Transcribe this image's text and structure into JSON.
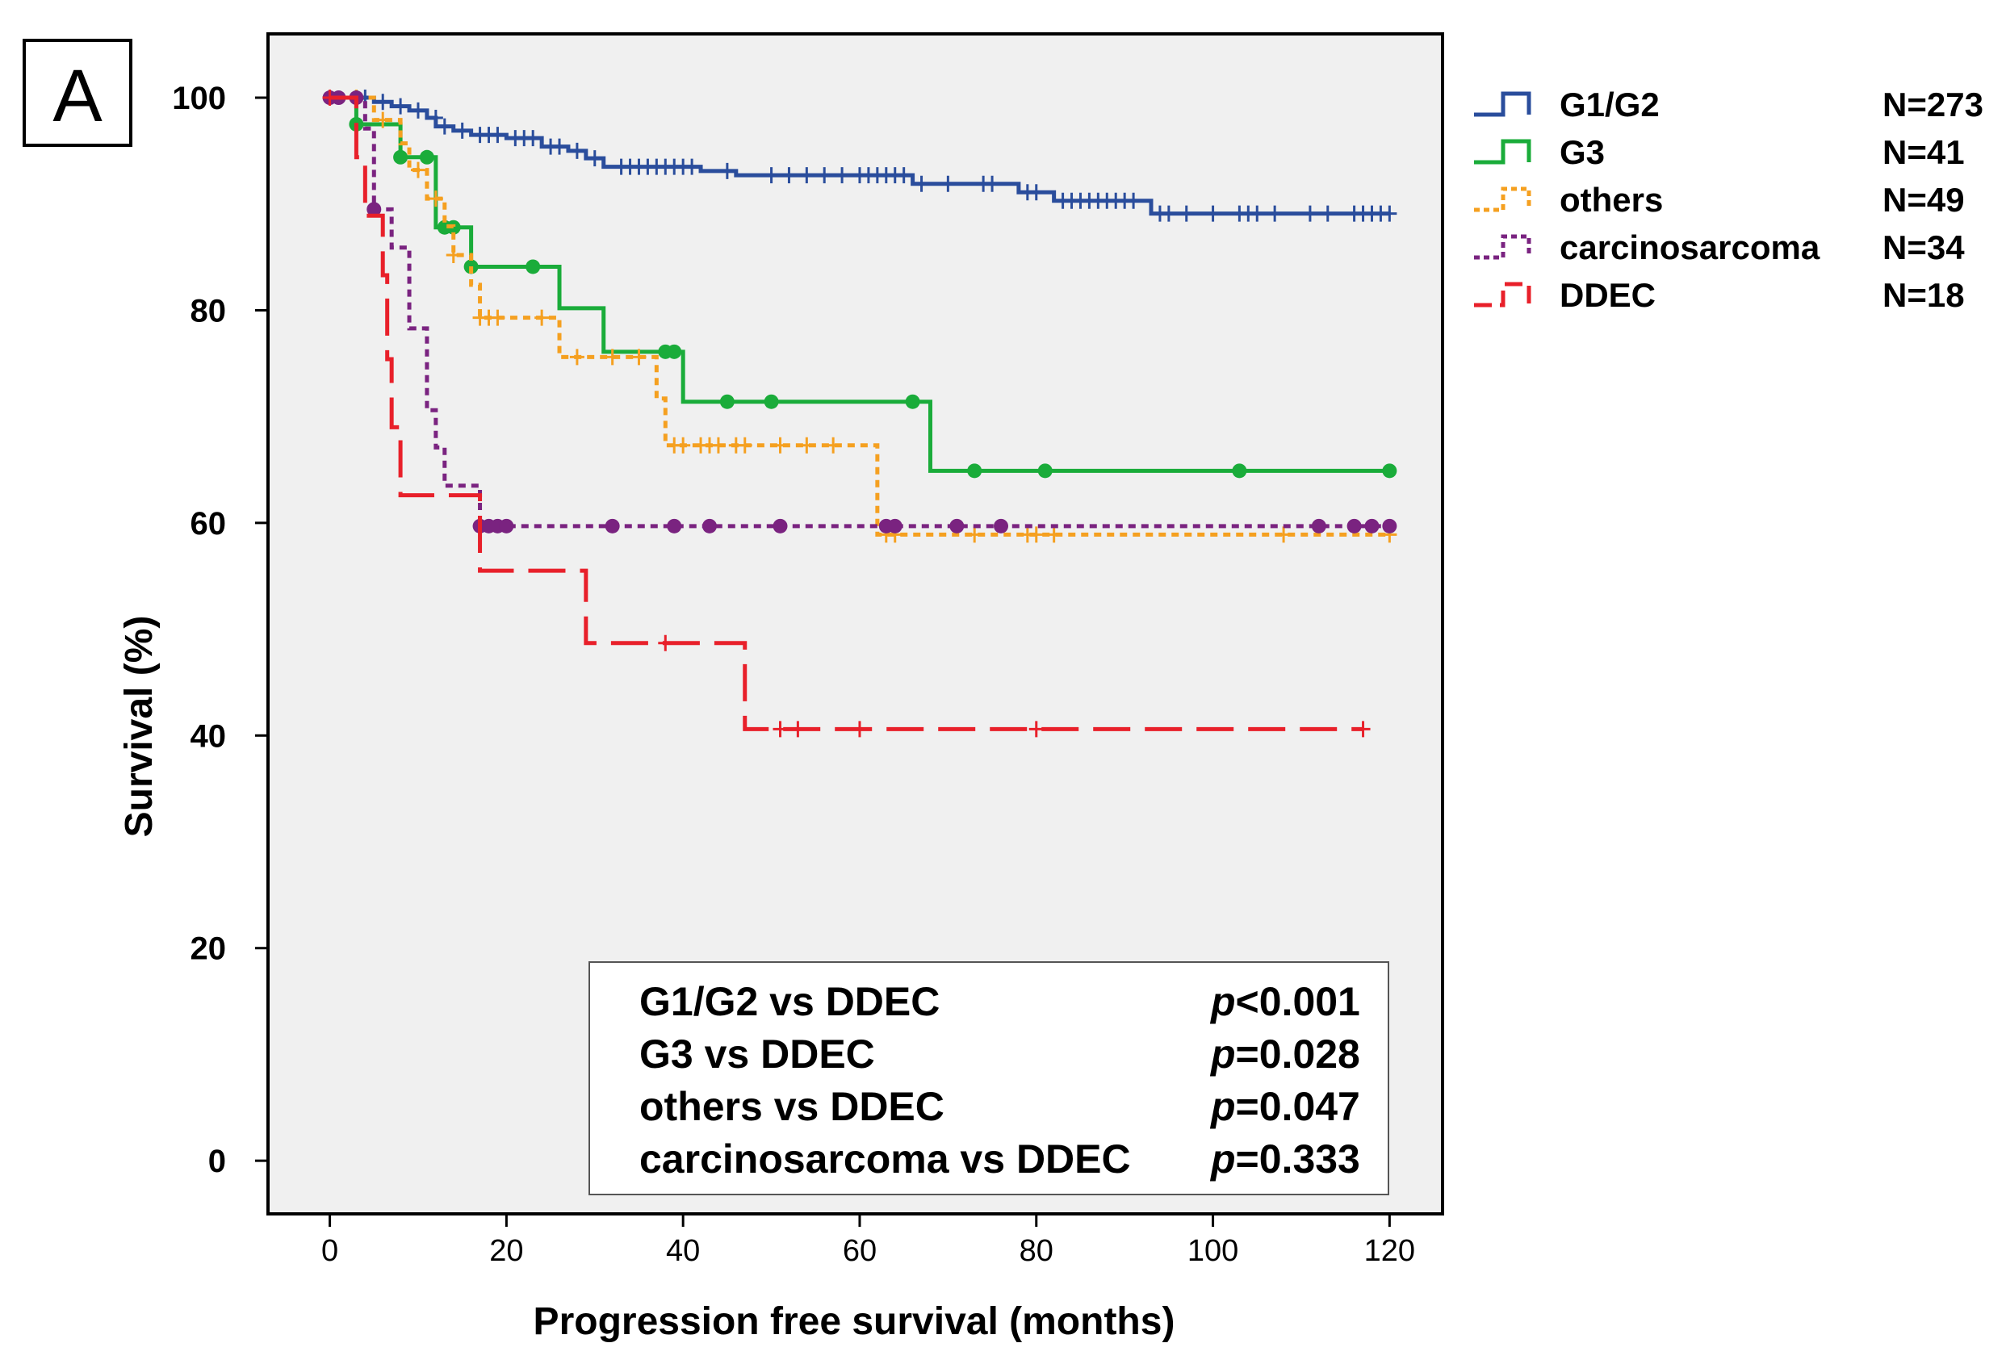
{
  "panel_label": "A",
  "chart_data": {
    "type": "line",
    "subtype": "kaplan-meier",
    "title": "",
    "xlabel": "Progression free survival (months)",
    "ylabel": "Survival (%)",
    "xlim": [
      -7,
      126
    ],
    "ylim": [
      -5,
      106
    ],
    "xticks": [
      0,
      20,
      40,
      60,
      80,
      100,
      120
    ],
    "yticks": [
      0,
      20,
      40,
      60,
      80,
      100
    ],
    "grid": false,
    "background": "#f0f0f0",
    "legend_position": "right",
    "series": [
      {
        "name": "G1/G2",
        "n_label": "N=273",
        "color": "#2a4d9c",
        "dash": "solid",
        "censor": "plus",
        "steps": [
          [
            0,
            100
          ],
          [
            5,
            99.6
          ],
          [
            7,
            99.2
          ],
          [
            9,
            98.8
          ],
          [
            11,
            98.1
          ],
          [
            12,
            97.3
          ],
          [
            14,
            96.9
          ],
          [
            16,
            96.5
          ],
          [
            20,
            96.2
          ],
          [
            24,
            95.4
          ],
          [
            27,
            95.0
          ],
          [
            29,
            94.3
          ],
          [
            31,
            93.5
          ],
          [
            42,
            93.1
          ],
          [
            46,
            92.7
          ],
          [
            66,
            91.9
          ],
          [
            78,
            91.1
          ],
          [
            82,
            90.3
          ],
          [
            93,
            89.1
          ],
          [
            120,
            89.1
          ]
        ],
        "censored": [
          [
            3,
            100
          ],
          [
            4,
            100
          ],
          [
            6,
            99.6
          ],
          [
            8,
            99.2
          ],
          [
            10,
            98.8
          ],
          [
            12,
            98.1
          ],
          [
            13,
            97.3
          ],
          [
            15,
            96.9
          ],
          [
            17,
            96.5
          ],
          [
            18,
            96.5
          ],
          [
            19,
            96.5
          ],
          [
            21,
            96.2
          ],
          [
            22,
            96.2
          ],
          [
            23,
            96.2
          ],
          [
            25,
            95.4
          ],
          [
            26,
            95.4
          ],
          [
            28,
            95.0
          ],
          [
            30,
            94.3
          ],
          [
            33,
            93.5
          ],
          [
            34,
            93.5
          ],
          [
            35,
            93.5
          ],
          [
            36,
            93.5
          ],
          [
            37,
            93.5
          ],
          [
            38,
            93.5
          ],
          [
            39,
            93.5
          ],
          [
            40,
            93.5
          ],
          [
            41,
            93.5
          ],
          [
            45,
            93.1
          ],
          [
            50,
            92.7
          ],
          [
            52,
            92.7
          ],
          [
            54,
            92.7
          ],
          [
            56,
            92.7
          ],
          [
            58,
            92.7
          ],
          [
            60,
            92.7
          ],
          [
            61,
            92.7
          ],
          [
            62,
            92.7
          ],
          [
            63,
            92.7
          ],
          [
            64,
            92.7
          ],
          [
            65,
            92.7
          ],
          [
            67,
            91.9
          ],
          [
            70,
            91.9
          ],
          [
            74,
            91.9
          ],
          [
            75,
            91.9
          ],
          [
            79,
            91.1
          ],
          [
            80,
            91.1
          ],
          [
            83,
            90.3
          ],
          [
            84,
            90.3
          ],
          [
            85,
            90.3
          ],
          [
            86,
            90.3
          ],
          [
            87,
            90.3
          ],
          [
            88,
            90.3
          ],
          [
            89,
            90.3
          ],
          [
            90,
            90.3
          ],
          [
            91,
            90.3
          ],
          [
            94,
            89.1
          ],
          [
            95,
            89.1
          ],
          [
            97,
            89.1
          ],
          [
            100,
            89.1
          ],
          [
            103,
            89.1
          ],
          [
            104,
            89.1
          ],
          [
            105,
            89.1
          ],
          [
            107,
            89.1
          ],
          [
            111,
            89.1
          ],
          [
            113,
            89.1
          ],
          [
            116,
            89.1
          ],
          [
            117,
            89.1
          ],
          [
            118,
            89.1
          ],
          [
            119,
            89.1
          ],
          [
            120,
            89.1
          ]
        ]
      },
      {
        "name": "G3",
        "n_label": "N=41",
        "color": "#1aac3a",
        "dash": "solid",
        "censor": "dot",
        "steps": [
          [
            0,
            100
          ],
          [
            3,
            97.5
          ],
          [
            8,
            94.4
          ],
          [
            11,
            94.4
          ],
          [
            12,
            87.8
          ],
          [
            16,
            84.1
          ],
          [
            26,
            80.2
          ],
          [
            31,
            76.1
          ],
          [
            40,
            71.4
          ],
          [
            68,
            64.9
          ],
          [
            120,
            64.9
          ]
        ],
        "censored": [
          [
            3,
            97.5
          ],
          [
            8,
            94.4
          ],
          [
            11,
            94.4
          ],
          [
            13,
            87.8
          ],
          [
            14,
            87.8
          ],
          [
            16,
            84.1
          ],
          [
            23,
            84.1
          ],
          [
            38,
            76.1
          ],
          [
            39,
            76.1
          ],
          [
            45,
            71.4
          ],
          [
            50,
            71.4
          ],
          [
            66,
            71.4
          ],
          [
            73,
            64.9
          ],
          [
            81,
            64.9
          ],
          [
            103,
            64.9
          ],
          [
            120,
            64.9
          ]
        ]
      },
      {
        "name": "others",
        "n_label": "N=49",
        "color": "#f5a020",
        "dash": "dot",
        "censor": "plus",
        "steps": [
          [
            0,
            100
          ],
          [
            5,
            97.9
          ],
          [
            8,
            95.7
          ],
          [
            9,
            93.2
          ],
          [
            11,
            90.5
          ],
          [
            13,
            87.9
          ],
          [
            14,
            85.2
          ],
          [
            16,
            82.4
          ],
          [
            17,
            79.3
          ],
          [
            26,
            75.6
          ],
          [
            37,
            71.7
          ],
          [
            38,
            67.3
          ],
          [
            62,
            58.9
          ],
          [
            120,
            58.9
          ]
        ],
        "censored": [
          [
            3,
            100
          ],
          [
            6,
            97.9
          ],
          [
            10,
            93.2
          ],
          [
            12,
            90.5
          ],
          [
            14,
            85.2
          ],
          [
            17,
            79.3
          ],
          [
            18,
            79.3
          ],
          [
            19,
            79.3
          ],
          [
            24,
            79.3
          ],
          [
            28,
            75.6
          ],
          [
            32,
            75.6
          ],
          [
            35,
            75.6
          ],
          [
            39,
            67.3
          ],
          [
            40,
            67.3
          ],
          [
            42,
            67.3
          ],
          [
            43,
            67.3
          ],
          [
            44,
            67.3
          ],
          [
            46,
            67.3
          ],
          [
            47,
            67.3
          ],
          [
            51,
            67.3
          ],
          [
            54,
            67.3
          ],
          [
            57,
            67.3
          ],
          [
            63,
            58.9
          ],
          [
            64,
            58.9
          ],
          [
            73,
            58.9
          ],
          [
            79,
            58.9
          ],
          [
            80,
            58.9
          ],
          [
            82,
            58.9
          ],
          [
            108,
            58.9
          ],
          [
            120,
            58.9
          ]
        ]
      },
      {
        "name": "carcinosarcoma",
        "n_label": "N=34",
        "color": "#7a2380",
        "dash": "dot",
        "censor": "dot",
        "steps": [
          [
            0,
            100
          ],
          [
            4,
            97.1
          ],
          [
            5,
            89.5
          ],
          [
            7,
            85.9
          ],
          [
            9,
            78.3
          ],
          [
            11,
            70.6
          ],
          [
            12,
            67.1
          ],
          [
            13,
            63.5
          ],
          [
            17,
            59.7
          ],
          [
            120,
            59.7
          ]
        ],
        "censored": [
          [
            0,
            100
          ],
          [
            1,
            100
          ],
          [
            3,
            100
          ],
          [
            5,
            89.5
          ],
          [
            17,
            59.7
          ],
          [
            18,
            59.7
          ],
          [
            19,
            59.7
          ],
          [
            20,
            59.7
          ],
          [
            32,
            59.7
          ],
          [
            39,
            59.7
          ],
          [
            43,
            59.7
          ],
          [
            51,
            59.7
          ],
          [
            63,
            59.7
          ],
          [
            64,
            59.7
          ],
          [
            71,
            59.7
          ],
          [
            76,
            59.7
          ],
          [
            112,
            59.7
          ],
          [
            116,
            59.7
          ],
          [
            118,
            59.7
          ],
          [
            120,
            59.7
          ]
        ]
      },
      {
        "name": "DDEC",
        "n_label": "N=18",
        "color": "#e8202a",
        "dash": "dash",
        "censor": "plus",
        "steps": [
          [
            0,
            100
          ],
          [
            3,
            94.4
          ],
          [
            4,
            88.9
          ],
          [
            6,
            83.3
          ],
          [
            6.5,
            75.4
          ],
          [
            7,
            69.0
          ],
          [
            8,
            62.6
          ],
          [
            17,
            55.5
          ],
          [
            29,
            48.7
          ],
          [
            47,
            40.6
          ],
          [
            117,
            40.6
          ]
        ],
        "censored": [
          [
            0,
            100
          ],
          [
            38,
            48.7
          ],
          [
            51,
            40.6
          ],
          [
            53,
            40.6
          ],
          [
            60,
            40.6
          ],
          [
            80,
            40.6
          ],
          [
            117,
            40.6
          ]
        ]
      }
    ],
    "annotations": [
      {
        "comparison": "G1/G2 vs DDEC",
        "p_symbol": "p",
        "p_value": "<0.001"
      },
      {
        "comparison": "G3 vs DDEC",
        "p_symbol": "p",
        "p_value": "=0.028"
      },
      {
        "comparison": "others vs DDEC",
        "p_symbol": "p",
        "p_value": "=0.047"
      },
      {
        "comparison": "carcinosarcoma vs DDEC",
        "p_symbol": "p",
        "p_value": "=0.333"
      }
    ]
  }
}
